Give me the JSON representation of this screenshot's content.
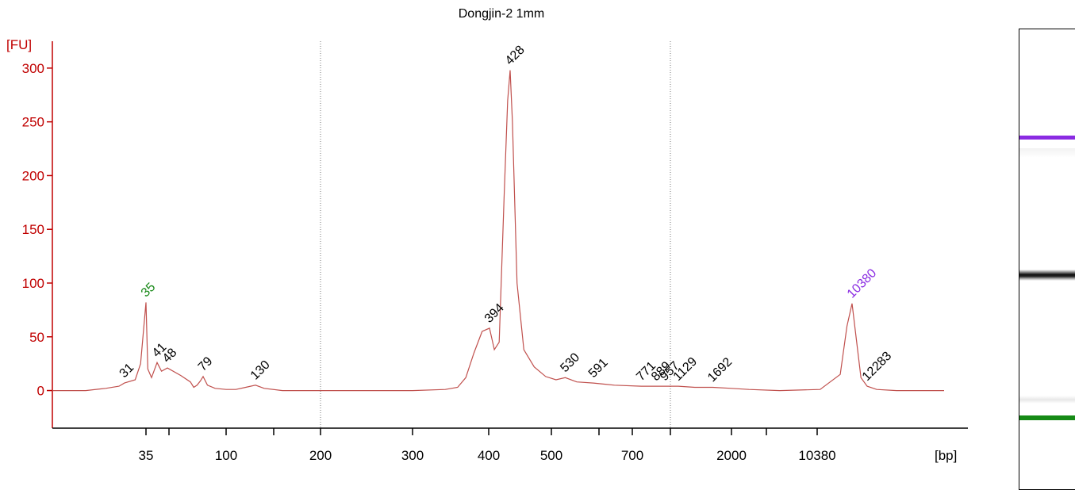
{
  "chart_data": {
    "type": "line",
    "title": "Dongjin-2 1mm",
    "ylabel": "[FU]",
    "xlabel": "[bp]",
    "ylim": [
      -35,
      325
    ],
    "y_ticks": [
      0,
      50,
      100,
      150,
      200,
      250,
      300
    ],
    "x_ticks": [
      "35",
      "",
      "100",
      "",
      "200",
      "300",
      "400",
      "500",
      "",
      "700",
      "",
      "2000",
      "",
      "10380"
    ],
    "peak_labels": [
      {
        "label": "35",
        "color": "#1a8a1a",
        "x": 35,
        "y": 82
      },
      {
        "label": "31",
        "color": "#000000",
        "x": 31,
        "y": 7
      },
      {
        "label": "41",
        "color": "#000000",
        "x": 41,
        "y": 26
      },
      {
        "label": "48",
        "color": "#000000",
        "x": 48,
        "y": 21
      },
      {
        "label": "79",
        "color": "#000000",
        "x": 79,
        "y": 13
      },
      {
        "label": "130",
        "color": "#000000",
        "x": 130,
        "y": 5
      },
      {
        "label": "394",
        "color": "#000000",
        "x": 394,
        "y": 58
      },
      {
        "label": "428",
        "color": "#000000",
        "x": 428,
        "y": 298
      },
      {
        "label": "530",
        "color": "#000000",
        "x": 530,
        "y": 12
      },
      {
        "label": "591",
        "color": "#000000",
        "x": 591,
        "y": 7
      },
      {
        "label": "771",
        "color": "#000000",
        "x": 771,
        "y": 4
      },
      {
        "label": "889",
        "color": "#000000",
        "x": 889,
        "y": 4
      },
      {
        "label": "957",
        "color": "#000000",
        "x": 957,
        "y": 4
      },
      {
        "label": "1129",
        "color": "#000000",
        "x": 1129,
        "y": 4
      },
      {
        "label": "1692",
        "color": "#000000",
        "x": 1692,
        "y": 3
      },
      {
        "label": "10380",
        "color": "#8a2be2",
        "x": 10380,
        "y": 81
      },
      {
        "label": "12283",
        "color": "#000000",
        "x": 12283,
        "y": 4
      }
    ],
    "series": [
      {
        "color": "#c0504d",
        "points": [
          [
            20,
            0
          ],
          [
            25,
            0
          ],
          [
            28,
            2
          ],
          [
            30,
            4
          ],
          [
            31,
            7
          ],
          [
            33,
            10
          ],
          [
            34,
            25
          ],
          [
            35,
            82
          ],
          [
            36,
            20
          ],
          [
            38,
            12
          ],
          [
            41,
            26
          ],
          [
            44,
            18
          ],
          [
            48,
            21
          ],
          [
            55,
            14
          ],
          [
            60,
            8
          ],
          [
            65,
            3
          ],
          [
            70,
            5
          ],
          [
            75,
            9
          ],
          [
            79,
            13
          ],
          [
            83,
            5
          ],
          [
            90,
            2
          ],
          [
            100,
            1
          ],
          [
            110,
            1
          ],
          [
            120,
            3
          ],
          [
            130,
            5
          ],
          [
            140,
            2
          ],
          [
            160,
            0
          ],
          [
            200,
            0
          ],
          [
            250,
            0
          ],
          [
            300,
            0
          ],
          [
            340,
            1
          ],
          [
            355,
            3
          ],
          [
            365,
            12
          ],
          [
            375,
            35
          ],
          [
            385,
            55
          ],
          [
            394,
            58
          ],
          [
            402,
            38
          ],
          [
            410,
            45
          ],
          [
            418,
            180
          ],
          [
            424,
            270
          ],
          [
            428,
            298
          ],
          [
            432,
            250
          ],
          [
            440,
            100
          ],
          [
            452,
            38
          ],
          [
            470,
            22
          ],
          [
            490,
            13
          ],
          [
            510,
            10
          ],
          [
            530,
            12
          ],
          [
            555,
            8
          ],
          [
            591,
            7
          ],
          [
            650,
            5
          ],
          [
            771,
            4
          ],
          [
            889,
            4
          ],
          [
            957,
            4
          ],
          [
            1129,
            4
          ],
          [
            1400,
            3
          ],
          [
            1692,
            3
          ],
          [
            2000,
            2
          ],
          [
            3000,
            1
          ],
          [
            5000,
            0
          ],
          [
            8000,
            1
          ],
          [
            9500,
            15
          ],
          [
            10000,
            60
          ],
          [
            10380,
            81
          ],
          [
            10800,
            55
          ],
          [
            11500,
            12
          ],
          [
            12283,
            4
          ],
          [
            13500,
            1
          ],
          [
            16000,
            0
          ],
          [
            22000,
            0
          ]
        ]
      }
    ],
    "grid": "dotted verticals at 200 and 1000",
    "gel_bands": [
      "purple upper marker",
      "black main band",
      "green lower marker"
    ]
  }
}
